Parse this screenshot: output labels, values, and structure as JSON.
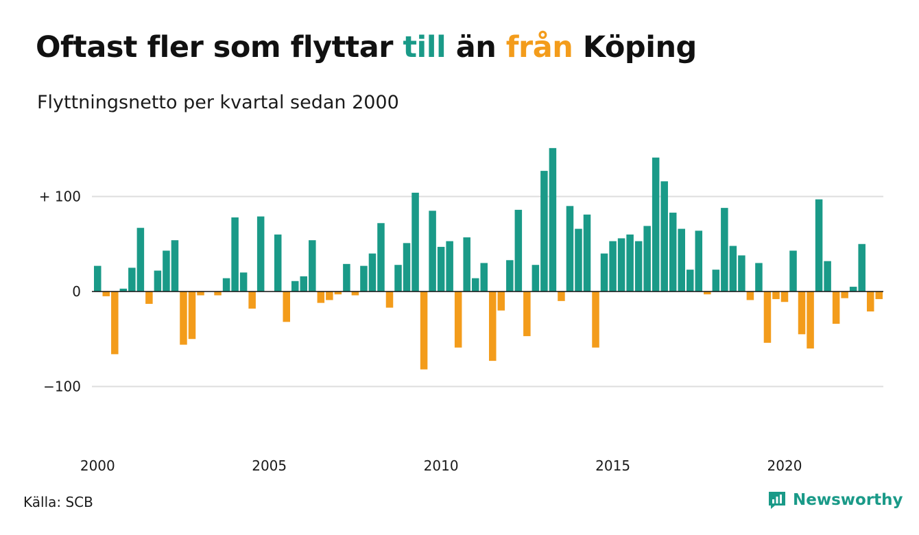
{
  "header": {
    "title_part1": "Oftast fler som flyttar ",
    "title_pos_word": "till",
    "title_part2": " än ",
    "title_neg_word": "från",
    "title_part3": " Köping",
    "subtitle": "Flyttningsnetto per kvartal sedan 2000"
  },
  "footer": {
    "source": "Källa: SCB",
    "brand": "Newsworthy"
  },
  "colors": {
    "positive": "#1a9a88",
    "negative": "#f39c1b",
    "grid": "#dddddd",
    "zero_line": "#111111"
  },
  "icons": {
    "brand_logo": "newsworthy-logo-icon"
  },
  "chart_data": {
    "type": "bar",
    "title": "Oftast fler som flyttar till än från Köping",
    "subtitle": "Flyttningsnetto per kvartal sedan 2000",
    "xlabel": "",
    "ylabel": "",
    "x_start": "2000 Q1",
    "x_ticks": [
      "2000",
      "2005",
      "2010",
      "2015",
      "2020"
    ],
    "y_ticks": [
      {
        "value": 100,
        "label": "+ 100"
      },
      {
        "value": 0,
        "label": "0"
      },
      {
        "value": -100,
        "label": "−100"
      }
    ],
    "ylim": [
      -160,
      155
    ],
    "grid": true,
    "values": [
      27,
      -5,
      -66,
      3,
      25,
      67,
      -13,
      22,
      43,
      54,
      -56,
      -50,
      -4,
      0,
      -4,
      14,
      78,
      20,
      -18,
      79,
      0,
      60,
      -32,
      11,
      16,
      54,
      -12,
      -9,
      -3,
      29,
      -4,
      27,
      40,
      72,
      -17,
      28,
      51,
      104,
      -82,
      85,
      47,
      53,
      -59,
      57,
      14,
      30,
      -73,
      -20,
      33,
      86,
      -47,
      28,
      127,
      151,
      -10,
      90,
      66,
      81,
      -59,
      40,
      53,
      56,
      60,
      53,
      69,
      141,
      116,
      83,
      66,
      23,
      64,
      -3,
      23,
      88,
      48,
      38,
      -9,
      30,
      -54,
      -8,
      -11,
      43,
      -45,
      -60,
      97,
      32,
      -34,
      -7,
      5,
      50,
      -21,
      -8
    ]
  }
}
